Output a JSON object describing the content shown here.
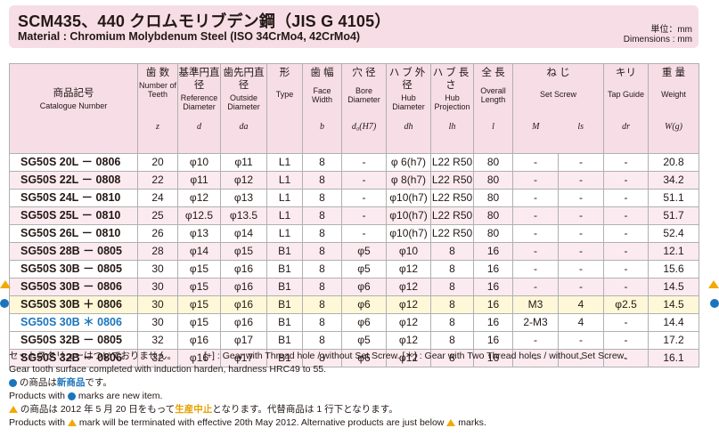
{
  "title": {
    "jp": "SCM435、440 クロムモリブデン鋼（JIS G 4105）",
    "en": "Material : Chromium Molybdenum Steel (ISO 34CrMo4, 42CrMo4)"
  },
  "units": {
    "jp": "単位：mm",
    "en": "Dimensions : mm"
  },
  "headers": [
    {
      "jp": "商品記号",
      "en": "Catalogue Number",
      "sym": ""
    },
    {
      "jp": "歯 数",
      "en": "Number of Teeth",
      "sym": "z"
    },
    {
      "jp": "基準円直径",
      "en": "Reference Diameter",
      "sym": "d"
    },
    {
      "jp": "歯先円直径",
      "en": "Outside Diameter",
      "sym": "da"
    },
    {
      "jp": "形",
      "en": "Type",
      "sym": ""
    },
    {
      "jp": "歯 幅",
      "en": "Face Width",
      "sym": "b"
    },
    {
      "jp": "穴 径",
      "en": "Bore Diameter",
      "sym": "d₀(H7)"
    },
    {
      "jp": "ハブ外径",
      "en": "Hub Diameter",
      "sym": "dh"
    },
    {
      "jp": "ハブ長さ",
      "en": "Hub Projection",
      "sym": "lh"
    },
    {
      "jp": "全 長",
      "en": "Overall Length",
      "sym": "l"
    },
    {
      "jp": "ね じ",
      "en": "Set Screw",
      "sym_m": "M",
      "sym_ls": "ls"
    },
    {
      "jp": "キリ",
      "en": "Tap Guide",
      "sym": "dr"
    },
    {
      "jp": "重 量",
      "en": "Weight",
      "sym": "W(g)"
    }
  ],
  "rows": [
    {
      "pno": "SG50S 20L － 0806",
      "z": "20",
      "d": "φ10",
      "da": "φ11",
      "type": "L1",
      "b": "8",
      "bore": "-",
      "dh": "φ 6(h7)",
      "lh": "L22 R50",
      "l": "80",
      "m": "-",
      "ls": "-",
      "dr": "-",
      "w": "20.8"
    },
    {
      "pno": "SG50S 22L － 0808",
      "z": "22",
      "d": "φ11",
      "da": "φ12",
      "type": "L1",
      "b": "8",
      "bore": "-",
      "dh": "φ 8(h7)",
      "lh": "L22 R50",
      "l": "80",
      "m": "-",
      "ls": "-",
      "dr": "-",
      "w": "34.2"
    },
    {
      "pno": "SG50S 24L － 0810",
      "z": "24",
      "d": "φ12",
      "da": "φ13",
      "type": "L1",
      "b": "8",
      "bore": "-",
      "dh": "φ10(h7)",
      "lh": "L22 R50",
      "l": "80",
      "m": "-",
      "ls": "-",
      "dr": "-",
      "w": "51.1"
    },
    {
      "pno": "SG50S 25L － 0810",
      "z": "25",
      "d": "φ12.5",
      "da": "φ13.5",
      "type": "L1",
      "b": "8",
      "bore": "-",
      "dh": "φ10(h7)",
      "lh": "L22 R50",
      "l": "80",
      "m": "-",
      "ls": "-",
      "dr": "-",
      "w": "51.7"
    },
    {
      "pno": "SG50S 26L － 0810",
      "z": "26",
      "d": "φ13",
      "da": "φ14",
      "type": "L1",
      "b": "8",
      "bore": "-",
      "dh": "φ10(h7)",
      "lh": "L22 R50",
      "l": "80",
      "m": "-",
      "ls": "-",
      "dr": "-",
      "w": "52.4"
    },
    {
      "pno": "SG50S 28B － 0805",
      "z": "28",
      "d": "φ14",
      "da": "φ15",
      "type": "B1",
      "b": "8",
      "bore": "φ5",
      "dh": "φ10",
      "lh": "8",
      "l": "16",
      "m": "-",
      "ls": "-",
      "dr": "-",
      "w": "12.1"
    },
    {
      "pno": "SG50S 30B － 0805",
      "z": "30",
      "d": "φ15",
      "da": "φ16",
      "type": "B1",
      "b": "8",
      "bore": "φ5",
      "dh": "φ12",
      "lh": "8",
      "l": "16",
      "m": "-",
      "ls": "-",
      "dr": "-",
      "w": "15.6"
    },
    {
      "pno": "SG50S 30B － 0806",
      "z": "30",
      "d": "φ15",
      "da": "φ16",
      "type": "B1",
      "b": "8",
      "bore": "φ6",
      "dh": "φ12",
      "lh": "8",
      "l": "16",
      "m": "-",
      "ls": "-",
      "dr": "-",
      "w": "14.5"
    },
    {
      "pno": "SG50S 30B ＋ 0806",
      "z": "30",
      "d": "φ15",
      "da": "φ16",
      "type": "B1",
      "b": "8",
      "bore": "φ6",
      "dh": "φ12",
      "lh": "8",
      "l": "16",
      "m": "M3",
      "ls": "4",
      "dr": "φ2.5",
      "w": "14.5"
    },
    {
      "pno": "SG50S 30B ＊ 0806",
      "z": "30",
      "d": "φ15",
      "da": "φ16",
      "type": "B1",
      "b": "8",
      "bore": "φ6",
      "dh": "φ12",
      "lh": "8",
      "l": "16",
      "m": "2-M3",
      "ls": "4",
      "dr": "-",
      "w": "14.4"
    },
    {
      "pno": "SG50S 32B － 0805",
      "z": "32",
      "d": "φ16",
      "da": "φ17",
      "type": "B1",
      "b": "8",
      "bore": "φ5",
      "dh": "φ12",
      "lh": "8",
      "l": "16",
      "m": "-",
      "ls": "-",
      "dr": "-",
      "w": "17.2"
    },
    {
      "pno": "SG50S 32B － 0806",
      "z": "32",
      "d": "φ16",
      "da": "φ17",
      "type": "B1",
      "b": "8",
      "bore": "φ6",
      "dh": "φ12",
      "lh": "8",
      "l": "16",
      "m": "-",
      "ls": "-",
      "dr": "-",
      "w": "16.1"
    }
  ],
  "notes": {
    "n1": "セットスクリューはついておりません。",
    "n1b": "[+] : Gear with Thread hole / without Set Screw.  [＊] : Gear with Two Thread holes / without Set Screw.",
    "n2": "Gear tooth surface completed with induction harden, hardness HRC49 to 55.",
    "n3a": "の商品は",
    "n3b": "新商品",
    "n3c": "です。",
    "n4a": "Products with",
    "n4b": "marks are new item.",
    "n5a": "の商品は 2012 年 5 月 20 日をもって",
    "n5b": "生産中止",
    "n5c": "となります。代替商品は 1 行下となります。",
    "n6a": "Products with",
    "n6b": "mark will be terminated with effective 20th May 2012. Alternative products are just below",
    "n6c": "marks."
  },
  "colors": {
    "header_bg": "#f6dde6",
    "row_alt": "#fbebf0",
    "highlight_row": "#fff8d8",
    "new_marker": "#1b75bc",
    "discontinued_marker": "#f2a900"
  }
}
